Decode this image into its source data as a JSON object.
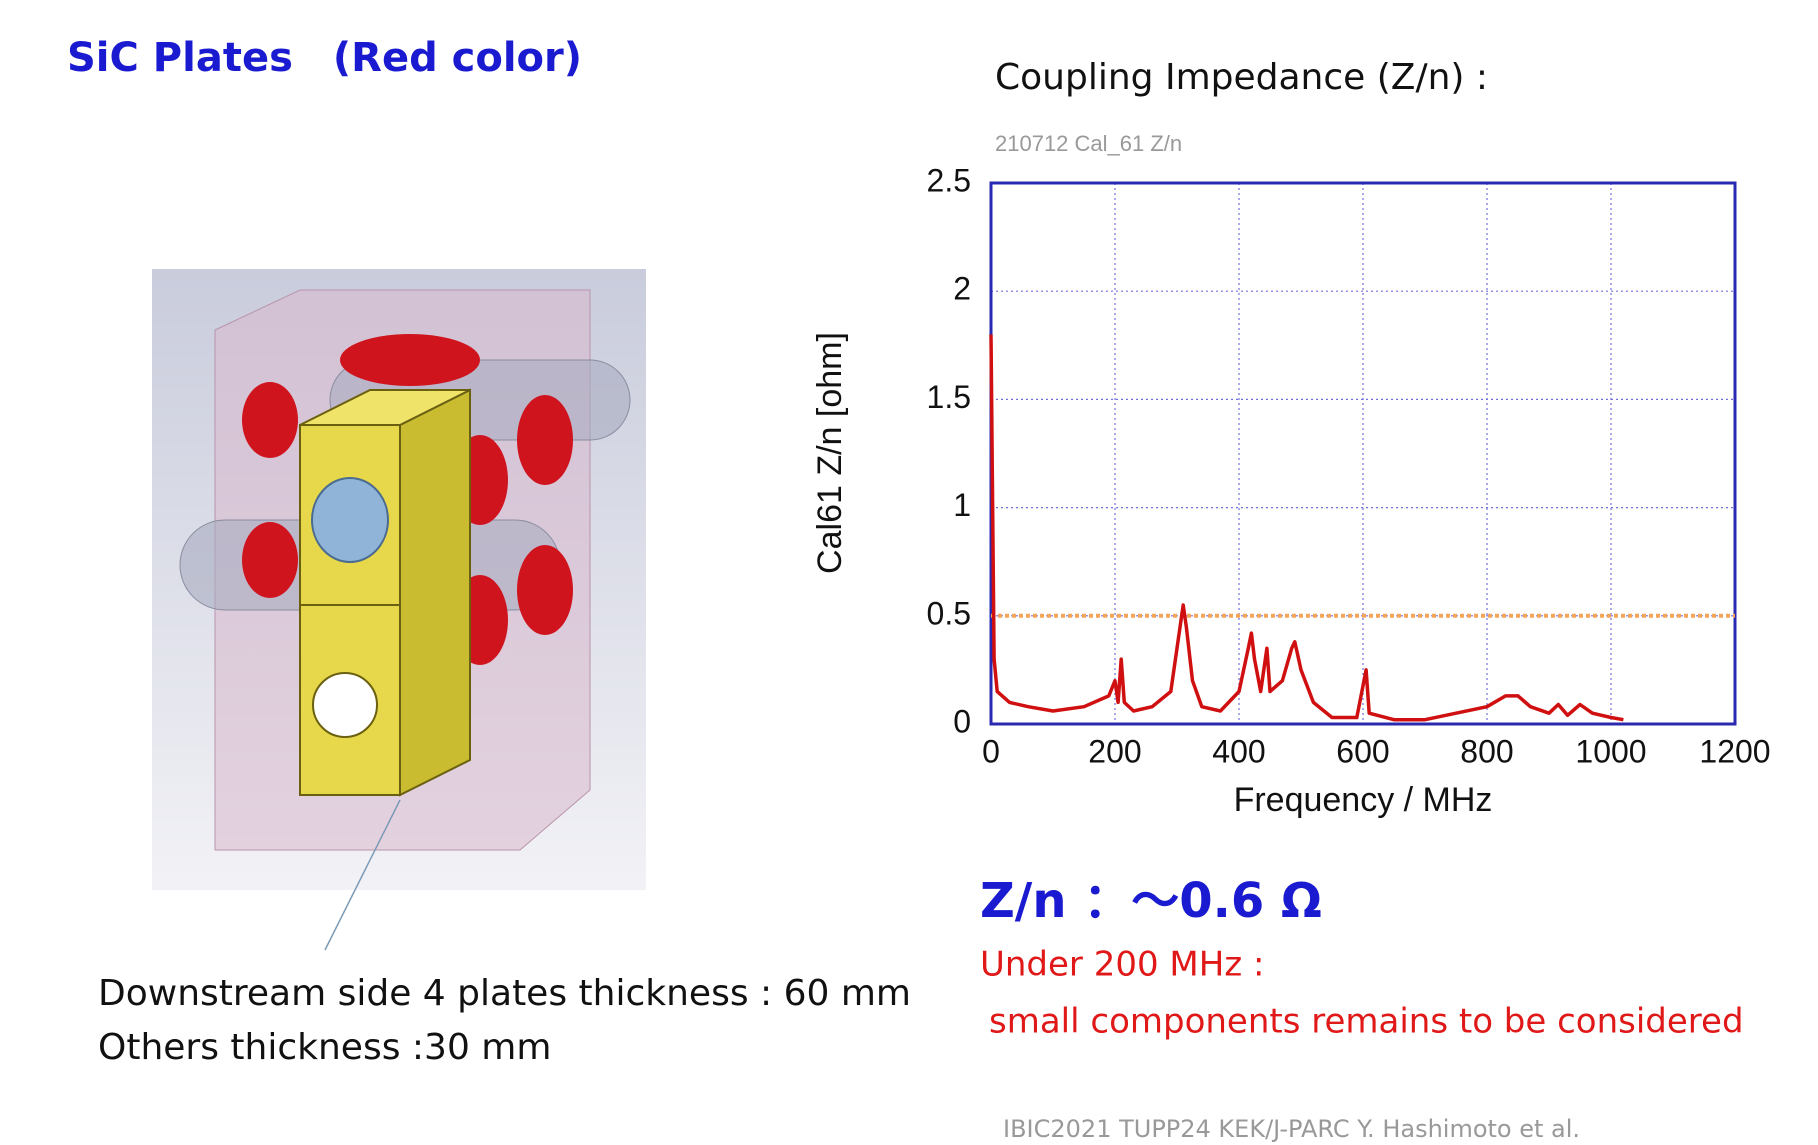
{
  "slide": {
    "heading": "SiC Plates　(Red color)",
    "chart_heading": "Coupling Impedance (Z/n) :",
    "summary": "Z/n ：～0.6 Ω",
    "note_line1": "Under 200 MHz :",
    "note_line2": "small components remains to be considered",
    "caption_line1": "Downstream side 4 plates thickness : 60 mm",
    "caption_line2": "Others thickness :30 mm",
    "footer": "IBIC2021 TUPP24 KEK/J-PARC Y. Hashimoto et al."
  },
  "chart_data": {
    "type": "line",
    "title": "210712 Cal_61 Z/n",
    "xlabel": "Frequency / MHz",
    "ylabel": "Cal61 Z/n [ohm]",
    "x": [
      0,
      5,
      10,
      30,
      60,
      100,
      150,
      190,
      200,
      205,
      210,
      215,
      230,
      260,
      290,
      305,
      310,
      315,
      325,
      340,
      370,
      400,
      415,
      420,
      425,
      435,
      445,
      450,
      470,
      485,
      490,
      500,
      520,
      550,
      590,
      605,
      610,
      650,
      700,
      750,
      800,
      830,
      850,
      870,
      900,
      915,
      930,
      950,
      970,
      1000,
      1020
    ],
    "series": [
      {
        "color": "#d01010",
        "values": [
          1.8,
          0.3,
          0.15,
          0.1,
          0.08,
          0.06,
          0.08,
          0.13,
          0.2,
          0.1,
          0.3,
          0.1,
          0.06,
          0.08,
          0.15,
          0.45,
          0.55,
          0.45,
          0.2,
          0.08,
          0.06,
          0.15,
          0.35,
          0.42,
          0.3,
          0.15,
          0.35,
          0.15,
          0.2,
          0.35,
          0.38,
          0.25,
          0.1,
          0.03,
          0.03,
          0.25,
          0.05,
          0.02,
          0.02,
          0.05,
          0.08,
          0.13,
          0.13,
          0.08,
          0.05,
          0.09,
          0.04,
          0.09,
          0.05,
          0.03,
          0.02
        ]
      }
    ],
    "reference_lines": [
      {
        "value": 0.5,
        "color": "#f5a55a"
      }
    ],
    "xlim": [
      0,
      1200
    ],
    "xticks": [
      0,
      200,
      400,
      600,
      800,
      1000,
      1200
    ],
    "ylim": [
      0,
      2.5
    ],
    "yticks": [
      0,
      0.5,
      1,
      1.5,
      2,
      2.5
    ],
    "grid": true
  }
}
